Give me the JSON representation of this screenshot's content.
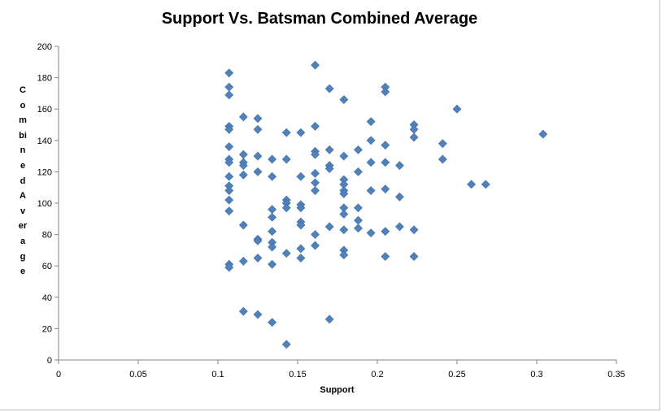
{
  "chart_data": {
    "type": "scatter",
    "title": "Support Vs. Batsman Combined Average",
    "xlabel": "Support",
    "ylabel": "Combined Average",
    "xlim": [
      0,
      0.35
    ],
    "ylim": [
      0,
      200
    ],
    "xticks": [
      "0",
      "0.05",
      "0.1",
      "0.15",
      "0.2",
      "0.25",
      "0.3",
      "0.35"
    ],
    "yticks": [
      "0",
      "20",
      "40",
      "60",
      "80",
      "100",
      "120",
      "140",
      "160",
      "180",
      "200"
    ],
    "grid": false,
    "legend": "none",
    "marker_color": "#4f81bd",
    "marker": "diamond",
    "points": [
      [
        0.107,
        183
      ],
      [
        0.107,
        174
      ],
      [
        0.107,
        169
      ],
      [
        0.107,
        149
      ],
      [
        0.107,
        147
      ],
      [
        0.107,
        136
      ],
      [
        0.107,
        128
      ],
      [
        0.107,
        126
      ],
      [
        0.107,
        117
      ],
      [
        0.107,
        111
      ],
      [
        0.107,
        108
      ],
      [
        0.107,
        102
      ],
      [
        0.107,
        95
      ],
      [
        0.107,
        61
      ],
      [
        0.107,
        59
      ],
      [
        0.116,
        155
      ],
      [
        0.116,
        131
      ],
      [
        0.116,
        126
      ],
      [
        0.116,
        124
      ],
      [
        0.116,
        118
      ],
      [
        0.116,
        86
      ],
      [
        0.116,
        63
      ],
      [
        0.116,
        31
      ],
      [
        0.125,
        154
      ],
      [
        0.125,
        147
      ],
      [
        0.125,
        130
      ],
      [
        0.125,
        120
      ],
      [
        0.125,
        77
      ],
      [
        0.125,
        76
      ],
      [
        0.125,
        65
      ],
      [
        0.125,
        29
      ],
      [
        0.134,
        128
      ],
      [
        0.134,
        117
      ],
      [
        0.134,
        96
      ],
      [
        0.134,
        91
      ],
      [
        0.134,
        82
      ],
      [
        0.134,
        75
      ],
      [
        0.134,
        72
      ],
      [
        0.134,
        61
      ],
      [
        0.134,
        24
      ],
      [
        0.143,
        145
      ],
      [
        0.143,
        128
      ],
      [
        0.143,
        102
      ],
      [
        0.143,
        100
      ],
      [
        0.143,
        97
      ],
      [
        0.143,
        68
      ],
      [
        0.143,
        10
      ],
      [
        0.152,
        145
      ],
      [
        0.152,
        117
      ],
      [
        0.152,
        99
      ],
      [
        0.152,
        97
      ],
      [
        0.152,
        88
      ],
      [
        0.152,
        86
      ],
      [
        0.152,
        71
      ],
      [
        0.152,
        65
      ],
      [
        0.161,
        188
      ],
      [
        0.161,
        149
      ],
      [
        0.161,
        133
      ],
      [
        0.161,
        131
      ],
      [
        0.161,
        119
      ],
      [
        0.161,
        113
      ],
      [
        0.161,
        108
      ],
      [
        0.161,
        80
      ],
      [
        0.161,
        73
      ],
      [
        0.17,
        173
      ],
      [
        0.17,
        134
      ],
      [
        0.17,
        124
      ],
      [
        0.17,
        122
      ],
      [
        0.17,
        85
      ],
      [
        0.17,
        26
      ],
      [
        0.179,
        166
      ],
      [
        0.179,
        130
      ],
      [
        0.179,
        115
      ],
      [
        0.179,
        112
      ],
      [
        0.179,
        108
      ],
      [
        0.179,
        106
      ],
      [
        0.179,
        97
      ],
      [
        0.179,
        93
      ],
      [
        0.179,
        83
      ],
      [
        0.179,
        70
      ],
      [
        0.179,
        67
      ],
      [
        0.188,
        134
      ],
      [
        0.188,
        120
      ],
      [
        0.188,
        97
      ],
      [
        0.188,
        89
      ],
      [
        0.188,
        84
      ],
      [
        0.196,
        152
      ],
      [
        0.196,
        140
      ],
      [
        0.196,
        126
      ],
      [
        0.196,
        108
      ],
      [
        0.196,
        81
      ],
      [
        0.205,
        174
      ],
      [
        0.205,
        171
      ],
      [
        0.205,
        137
      ],
      [
        0.205,
        126
      ],
      [
        0.205,
        109
      ],
      [
        0.205,
        82
      ],
      [
        0.205,
        66
      ],
      [
        0.214,
        124
      ],
      [
        0.214,
        104
      ],
      [
        0.214,
        85
      ],
      [
        0.223,
        150
      ],
      [
        0.223,
        147
      ],
      [
        0.223,
        142
      ],
      [
        0.223,
        83
      ],
      [
        0.223,
        66
      ],
      [
        0.241,
        138
      ],
      [
        0.241,
        128
      ],
      [
        0.25,
        160
      ],
      [
        0.259,
        112
      ],
      [
        0.268,
        112
      ],
      [
        0.304,
        144
      ]
    ]
  }
}
